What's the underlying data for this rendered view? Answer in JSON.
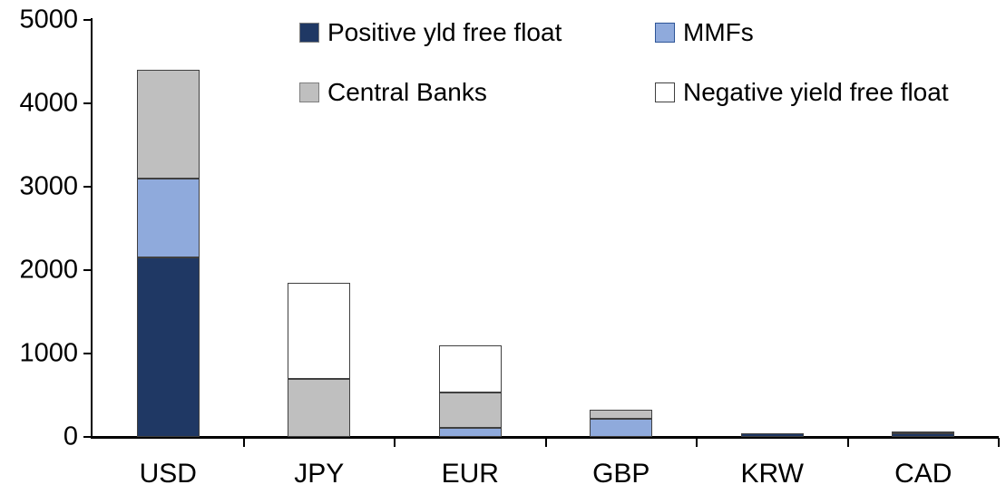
{
  "chart_data": {
    "type": "bar",
    "stacked": true,
    "title": "",
    "xlabel": "",
    "ylabel": "",
    "categories": [
      "USD",
      "JPY",
      "EUR",
      "GBP",
      "KRW",
      "CAD"
    ],
    "series": [
      {
        "name": "Positive yld free float",
        "color": "#1F3864",
        "swatch_border": "#7F7F7F",
        "values": [
          2150,
          0,
          0,
          0,
          45,
          40
        ]
      },
      {
        "name": "MMFs",
        "color": "#8FAADC",
        "swatch_border": "#2E5597",
        "values": [
          950,
          0,
          110,
          220,
          0,
          0
        ]
      },
      {
        "name": "Central Banks",
        "color": "#BFBFBF",
        "swatch_border": "#7F7F7F",
        "values": [
          1300,
          700,
          420,
          110,
          0,
          30
        ]
      },
      {
        "name": "Negative yield free float",
        "color": "#FFFFFF",
        "swatch_border": "#404040",
        "values": [
          0,
          1150,
          570,
          0,
          0,
          0
        ]
      }
    ],
    "totals": [
      4400,
      1850,
      1100,
      330,
      45,
      70
    ],
    "ylim": [
      0,
      5000
    ],
    "yticks": [
      0,
      1000,
      2000,
      3000,
      4000,
      5000
    ],
    "grid": false,
    "legend_position": "top",
    "legend_layout": "two-rows-two-columns",
    "bar_border_color": "#404040",
    "axis_color": "#000000"
  }
}
